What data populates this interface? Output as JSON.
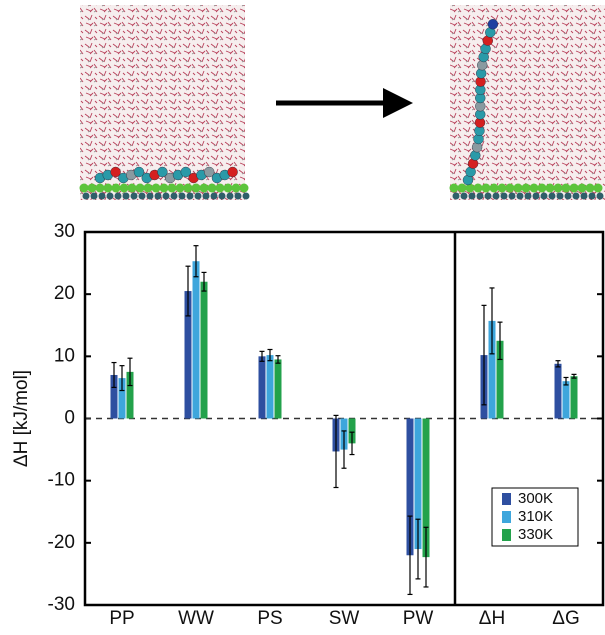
{
  "chart_data": {
    "type": "bar",
    "y_label": "ΔH [kJ/mol]",
    "categories": [
      "PP",
      "WW",
      "PS",
      "SW",
      "PW",
      "ΔH",
      "ΔG"
    ],
    "series": [
      {
        "name": "300K",
        "color": "#2e4fa0",
        "values": [
          7,
          20.5,
          10,
          -5.3,
          -22,
          10.2,
          8.8
        ],
        "errors": [
          2,
          4,
          0.8,
          5.8,
          6.3,
          8,
          0.5
        ]
      },
      {
        "name": "310K",
        "color": "#3ea6dc",
        "values": [
          6.5,
          25.3,
          10.2,
          -5,
          -21,
          15.7,
          6
        ],
        "errors": [
          2,
          2.5,
          0.9,
          3,
          4.8,
          5.3,
          0.6
        ]
      },
      {
        "name": "330K",
        "color": "#23a24b",
        "values": [
          7.5,
          22,
          9.5,
          -4,
          -22.3,
          12.5,
          6.8
        ],
        "errors": [
          2.2,
          1.5,
          0.6,
          1.8,
          4.8,
          3,
          0.3
        ]
      }
    ],
    "ylim": [
      -30,
      30
    ],
    "yticks": [
      -30,
      -20,
      -10,
      0,
      10,
      20,
      30
    ]
  }
}
